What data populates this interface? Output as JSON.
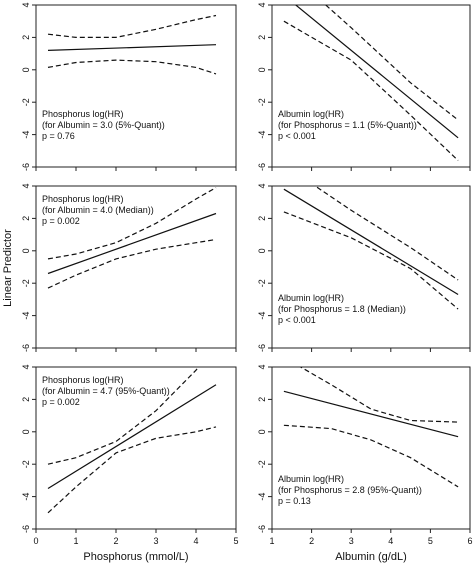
{
  "figure": {
    "ylabel": "Linear Predictor"
  },
  "chart_data": [
    {
      "type": "line",
      "panel": "phosphorus-top",
      "xlim": [
        0,
        5
      ],
      "ylim": [
        -6,
        4
      ],
      "xticks": [
        "0",
        "1",
        "2",
        "3",
        "4",
        "5"
      ],
      "yticks": [
        "-6",
        "-4",
        "-2",
        "0",
        "2",
        "4"
      ],
      "show_xticklabels": false,
      "xlabel": "",
      "annotation": [
        "Phosphorus log(HR)",
        "(for Albumin = 3.0 (5%-Quant))",
        "p = 0.76"
      ],
      "series": [
        {
          "role": "estimate",
          "x": [
            0.3,
            4.5
          ],
          "y": [
            1.2,
            1.55
          ]
        },
        {
          "role": "ci_upper",
          "x": [
            0.3,
            1.0,
            2.0,
            3.0,
            4.0,
            4.5
          ],
          "y": [
            2.2,
            2.0,
            2.0,
            2.5,
            3.1,
            3.35
          ]
        },
        {
          "role": "ci_lower",
          "x": [
            0.3,
            1.0,
            2.0,
            3.0,
            4.0,
            4.5
          ],
          "y": [
            0.15,
            0.45,
            0.6,
            0.5,
            0.15,
            -0.25
          ]
        }
      ]
    },
    {
      "type": "line",
      "panel": "albumin-top",
      "xlim": [
        1,
        6
      ],
      "ylim": [
        -6,
        4
      ],
      "xticks": [
        "1",
        "2",
        "3",
        "4",
        "5",
        "6"
      ],
      "yticks": [
        "-6",
        "-4",
        "-2",
        "0",
        "2",
        "4"
      ],
      "show_xticklabels": false,
      "xlabel": "",
      "annotation": [
        "Albumin log(HR)",
        "(for Phosphorus = 1.1 (5%-Quant))",
        "p < 0.001"
      ],
      "series": [
        {
          "role": "estimate",
          "x": [
            1.3,
            5.7
          ],
          "y": [
            4.6,
            -4.2
          ]
        },
        {
          "role": "ci_upper",
          "x": [
            1.3,
            3.0,
            4.5,
            5.7
          ],
          "y": [
            6.3,
            2.6,
            -0.8,
            -3.1
          ]
        },
        {
          "role": "ci_lower",
          "x": [
            1.3,
            3.0,
            4.5,
            5.7
          ],
          "y": [
            3.0,
            0.6,
            -2.8,
            -5.6
          ]
        }
      ]
    },
    {
      "type": "line",
      "panel": "phosphorus-middle",
      "xlim": [
        0,
        5
      ],
      "ylim": [
        -6,
        4
      ],
      "xticks": [
        "0",
        "1",
        "2",
        "3",
        "4",
        "5"
      ],
      "yticks": [
        "-6",
        "-4",
        "-2",
        "0",
        "2",
        "4"
      ],
      "show_xticklabels": false,
      "xlabel": "",
      "annotation": [
        "Phosphorus log(HR)",
        "(for Albumin = 4.0 (Median))",
        "p = 0.002"
      ],
      "series": [
        {
          "role": "estimate",
          "x": [
            0.3,
            4.5
          ],
          "y": [
            -1.4,
            2.3
          ]
        },
        {
          "role": "ci_upper",
          "x": [
            0.3,
            1.0,
            2.0,
            3.0,
            4.0,
            4.5
          ],
          "y": [
            -0.5,
            -0.2,
            0.5,
            1.7,
            3.2,
            3.9
          ]
        },
        {
          "role": "ci_lower",
          "x": [
            0.3,
            1.0,
            2.0,
            3.0,
            4.0,
            4.5
          ],
          "y": [
            -2.3,
            -1.5,
            -0.5,
            0.1,
            0.5,
            0.7
          ]
        }
      ]
    },
    {
      "type": "line",
      "panel": "albumin-middle",
      "xlim": [
        1,
        6
      ],
      "ylim": [
        -6,
        4
      ],
      "xticks": [
        "1",
        "2",
        "3",
        "4",
        "5",
        "6"
      ],
      "yticks": [
        "-6",
        "-4",
        "-2",
        "0",
        "2",
        "4"
      ],
      "show_xticklabels": false,
      "xlabel": "",
      "annotation": [
        "Albumin log(HR)",
        "(for Phosphorus = 1.8 (Median))",
        "p < 0.001"
      ],
      "series": [
        {
          "role": "estimate",
          "x": [
            1.3,
            5.7
          ],
          "y": [
            3.8,
            -2.7
          ]
        },
        {
          "role": "ci_upper",
          "x": [
            1.3,
            3.0,
            4.5,
            5.7
          ],
          "y": [
            5.3,
            2.5,
            0.2,
            -1.8
          ]
        },
        {
          "role": "ci_lower",
          "x": [
            1.3,
            3.0,
            4.5,
            5.7
          ],
          "y": [
            2.4,
            0.8,
            -1.1,
            -3.6
          ]
        }
      ]
    },
    {
      "type": "line",
      "panel": "phosphorus-bottom",
      "xlim": [
        0,
        5
      ],
      "ylim": [
        -6,
        4
      ],
      "xticks": [
        "0",
        "1",
        "2",
        "3",
        "4",
        "5"
      ],
      "yticks": [
        "-6",
        "-4",
        "-2",
        "0",
        "2",
        "4"
      ],
      "show_xticklabels": true,
      "xlabel": "Phosphorus (mmol/L)",
      "annotation": [
        "Phosphorus log(HR)",
        "(for Albumin = 4.7 (95%-Quant))",
        "p = 0.002"
      ],
      "series": [
        {
          "role": "estimate",
          "x": [
            0.3,
            4.5
          ],
          "y": [
            -3.5,
            2.9
          ]
        },
        {
          "role": "ci_upper",
          "x": [
            0.3,
            1.0,
            2.0,
            3.0,
            4.0,
            4.5
          ],
          "y": [
            -2.0,
            -1.6,
            -0.6,
            1.3,
            3.8,
            5.4
          ]
        },
        {
          "role": "ci_lower",
          "x": [
            0.3,
            1.0,
            2.0,
            3.0,
            4.0,
            4.5
          ],
          "y": [
            -5.0,
            -3.4,
            -1.3,
            -0.4,
            0.0,
            0.3
          ]
        }
      ]
    },
    {
      "type": "line",
      "panel": "albumin-bottom",
      "xlim": [
        1,
        6
      ],
      "ylim": [
        -6,
        4
      ],
      "xticks": [
        "1",
        "2",
        "3",
        "4",
        "5",
        "6"
      ],
      "yticks": [
        "-6",
        "-4",
        "-2",
        "0",
        "2",
        "4"
      ],
      "show_xticklabels": true,
      "xlabel": "Albumin (g/dL)",
      "annotation": [
        "Albumin log(HR)",
        "(for Phosphorus = 2.8 (95%-Quant))",
        "p = 0.13"
      ],
      "series": [
        {
          "role": "estimate",
          "x": [
            1.3,
            5.7
          ],
          "y": [
            2.5,
            -0.3
          ]
        },
        {
          "role": "ci_upper",
          "x": [
            1.3,
            2.5,
            3.5,
            4.5,
            5.7
          ],
          "y": [
            4.6,
            2.9,
            1.4,
            0.7,
            0.6
          ]
        },
        {
          "role": "ci_lower",
          "x": [
            1.3,
            2.5,
            3.5,
            4.5,
            5.7
          ],
          "y": [
            0.4,
            0.2,
            -0.5,
            -1.6,
            -3.4
          ]
        }
      ]
    }
  ]
}
